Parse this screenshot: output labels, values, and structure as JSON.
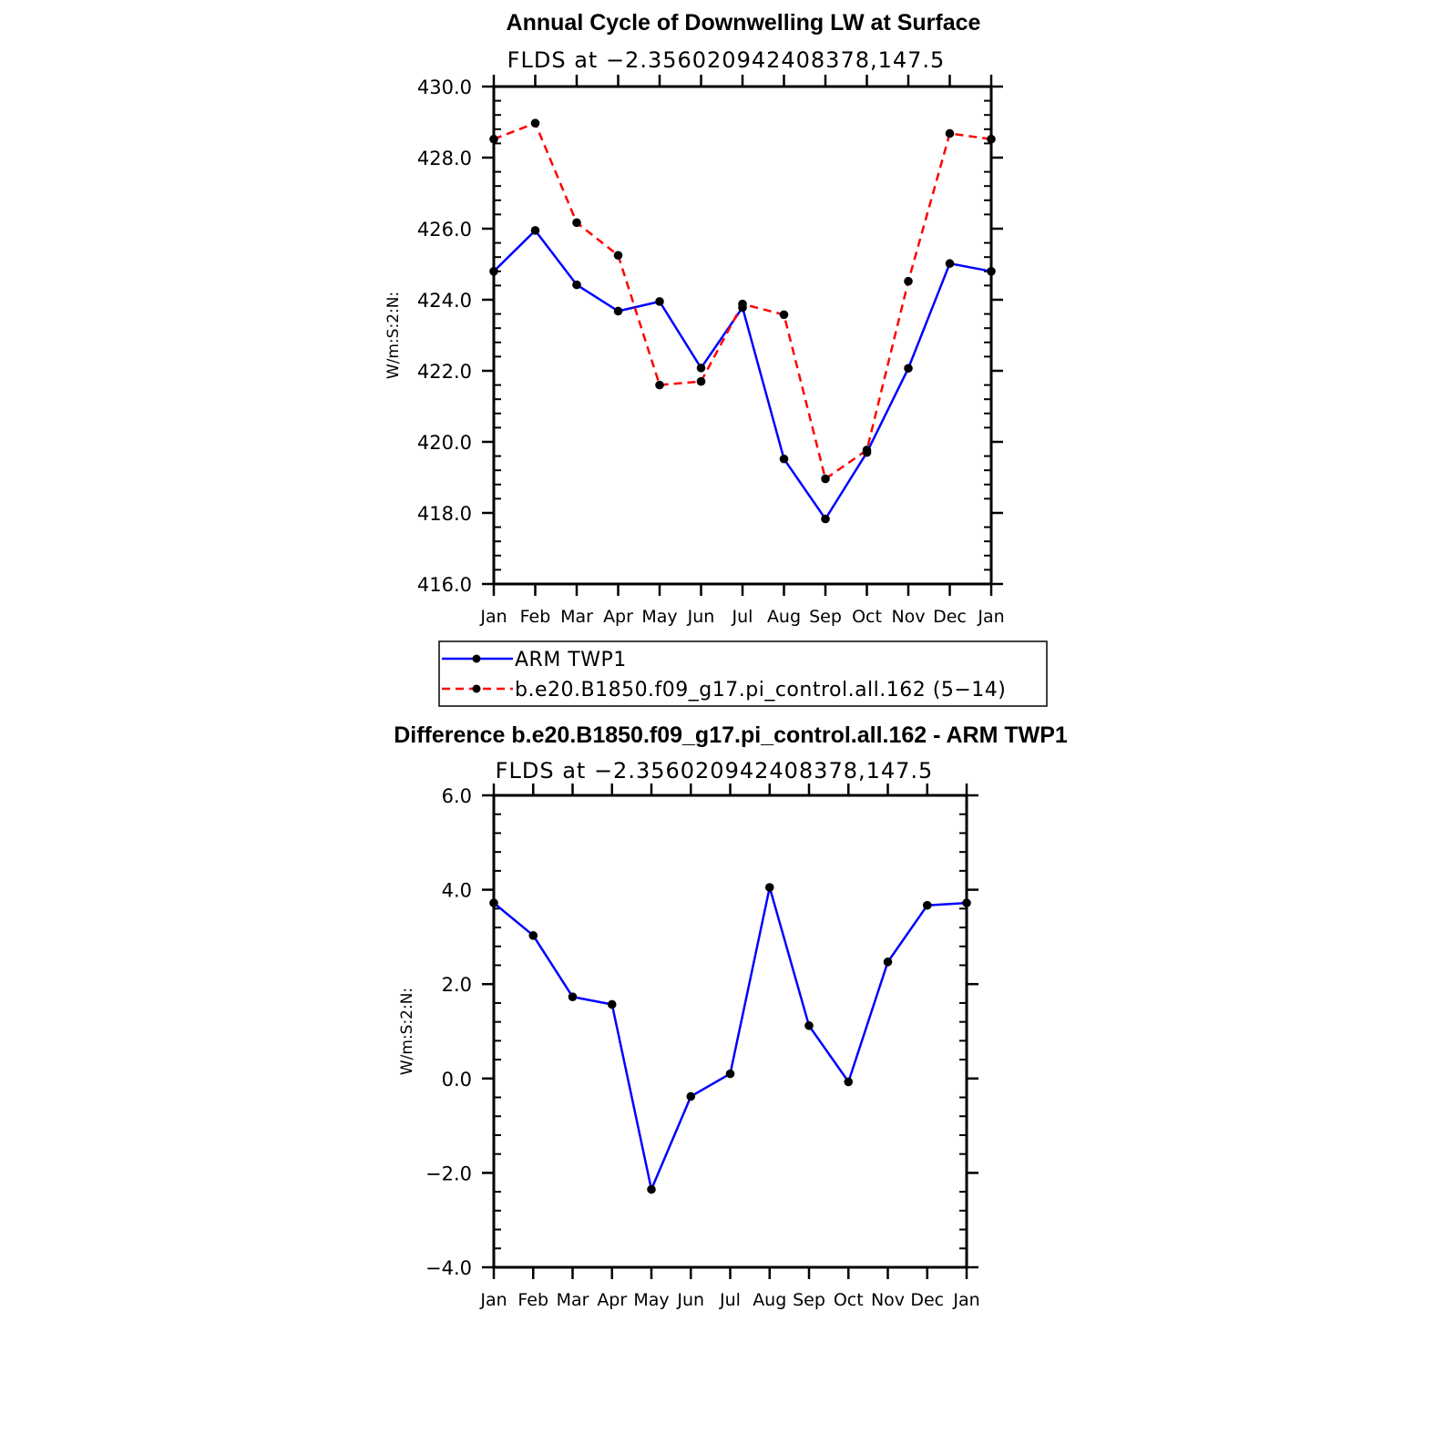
{
  "chart_data": [
    {
      "type": "line",
      "title": "Annual Cycle of Downwelling LW at Surface",
      "subtitle": "FLDS at −2.356020942408378,147.5",
      "ylabel": "W/m:S:2:N:",
      "xlabel": "",
      "categories": [
        "Jan",
        "Feb",
        "Mar",
        "Apr",
        "May",
        "Jun",
        "Jul",
        "Aug",
        "Sep",
        "Oct",
        "Nov",
        "Dec",
        "Jan"
      ],
      "ylim": [
        416.0,
        430.0
      ],
      "yticks": [
        "416.0",
        "418.0",
        "420.0",
        "422.0",
        "424.0",
        "426.0",
        "428.0",
        "430.0"
      ],
      "series": [
        {
          "name": "ARM TWP1",
          "color": "#0000ff",
          "dash": "solid",
          "values": [
            424.8,
            425.95,
            424.42,
            423.68,
            423.95,
            422.08,
            423.78,
            419.52,
            417.83,
            419.7,
            422.07,
            425.02,
            424.8
          ]
        },
        {
          "name": "b.e20.B1850.f09_g17.pi_control.all.162 (5−14)",
          "color": "#ff0000",
          "dash": "dashed",
          "values": [
            428.52,
            428.97,
            426.17,
            425.25,
            421.6,
            421.7,
            423.88,
            423.58,
            418.96,
            419.77,
            424.52,
            428.68,
            428.52
          ]
        }
      ],
      "legend": "below"
    },
    {
      "type": "line",
      "title": "Difference b.e20.B1850.f09_g17.pi_control.all.162 - ARM TWP1",
      "subtitle": "FLDS at −2.356020942408378,147.5",
      "ylabel": "W/m:S:2:N:",
      "xlabel": "",
      "categories": [
        "Jan",
        "Feb",
        "Mar",
        "Apr",
        "May",
        "Jun",
        "Jul",
        "Aug",
        "Sep",
        "Oct",
        "Nov",
        "Dec",
        "Jan"
      ],
      "ylim": [
        -4.0,
        6.0
      ],
      "yticks": [
        "−4.0",
        "−2.0",
        "0.0",
        "2.0",
        "4.0",
        "6.0"
      ],
      "series": [
        {
          "name": "Difference",
          "color": "#0000ff",
          "dash": "solid",
          "values": [
            3.72,
            3.03,
            1.73,
            1.57,
            -2.35,
            -0.38,
            0.1,
            4.05,
            1.12,
            -0.07,
            2.47,
            3.67,
            3.72
          ]
        }
      ]
    }
  ]
}
